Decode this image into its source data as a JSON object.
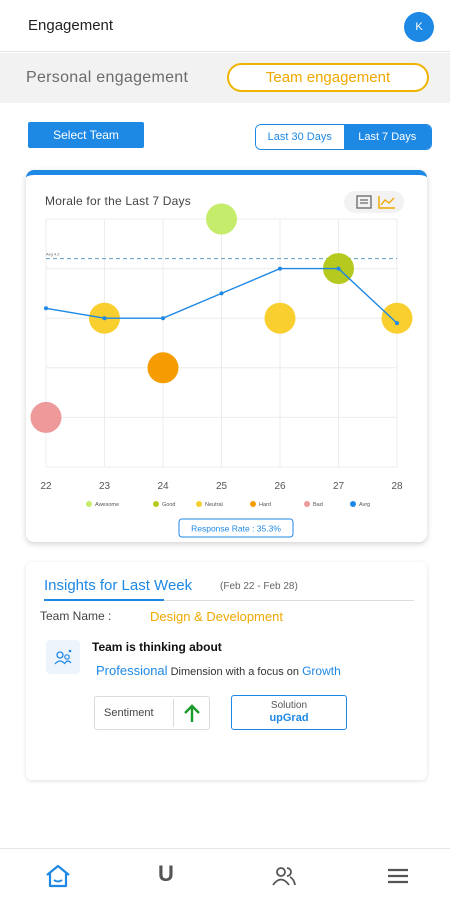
{
  "appbar": {
    "title": "Engagement",
    "avatar_initial": "K"
  },
  "segments": {
    "personal": "Personal engagement",
    "team": "Team engagement",
    "active": "team"
  },
  "filters": {
    "select_team": "Select Team",
    "ranges": [
      "Last 30 Days",
      "Last 7 Days"
    ],
    "active_range": "Last 7 Days"
  },
  "chart_card": {
    "title": "Morale for the Last 7 Days",
    "response_rate": "Response Rate : 35.3%"
  },
  "chart_data": {
    "type": "scatter",
    "title": "Morale for the Last 7 Days",
    "x": [
      "22",
      "23",
      "24",
      "25",
      "26",
      "27",
      "28"
    ],
    "baseline_label": "Avg 4.2",
    "baseline_value": 4.2,
    "ylim": [
      0,
      5
    ],
    "grid": true,
    "legend_position": "bottom",
    "legend": [
      {
        "name": "Awesome",
        "color": "#c5ec6a"
      },
      {
        "name": "Good",
        "color": "#b6c91f"
      },
      {
        "name": "Neutral",
        "color": "#f8cf2f"
      },
      {
        "name": "Hard",
        "color": "#f59c00"
      },
      {
        "name": "Bad",
        "color": "#ee9a9a"
      },
      {
        "name": "Avrg",
        "color": "#1e88e5"
      }
    ],
    "bubbles": [
      {
        "x": "22",
        "y": 1.0,
        "mood": "Bad"
      },
      {
        "x": "23",
        "y": 3.0,
        "mood": "Neutral"
      },
      {
        "x": "24",
        "y": 2.0,
        "mood": "Hard"
      },
      {
        "x": "25",
        "y": 5.0,
        "mood": "Awesome"
      },
      {
        "x": "26",
        "y": 3.0,
        "mood": "Neutral"
      },
      {
        "x": "27",
        "y": 4.0,
        "mood": "Good"
      },
      {
        "x": "28",
        "y": 3.0,
        "mood": "Neutral"
      }
    ],
    "series": [
      {
        "name": "Avrg",
        "color": "#1e88e5",
        "values": [
          3.2,
          3.0,
          3.0,
          3.5,
          4.0,
          4.0,
          2.9
        ]
      }
    ]
  },
  "insights": {
    "title": "Insights for Last Week",
    "range": "(Feb 22 - Feb 28)",
    "team_label": "Team Name :",
    "team_value": "Design & Development",
    "thinking_title": "Team is thinking about",
    "dimension": "Professional",
    "dimension_text": "Dimension with a focus on",
    "focus": "Growth",
    "sentiment_label": "Sentiment",
    "solution_label": "Solution",
    "solution_value": "upGrad"
  },
  "nav": {
    "items": [
      "home-icon",
      "u-logo-icon",
      "people-icon",
      "menu-icon"
    ],
    "u_glyph": "U"
  },
  "colors": {
    "primary": "#1e88e5",
    "accent": "#f0a800"
  }
}
